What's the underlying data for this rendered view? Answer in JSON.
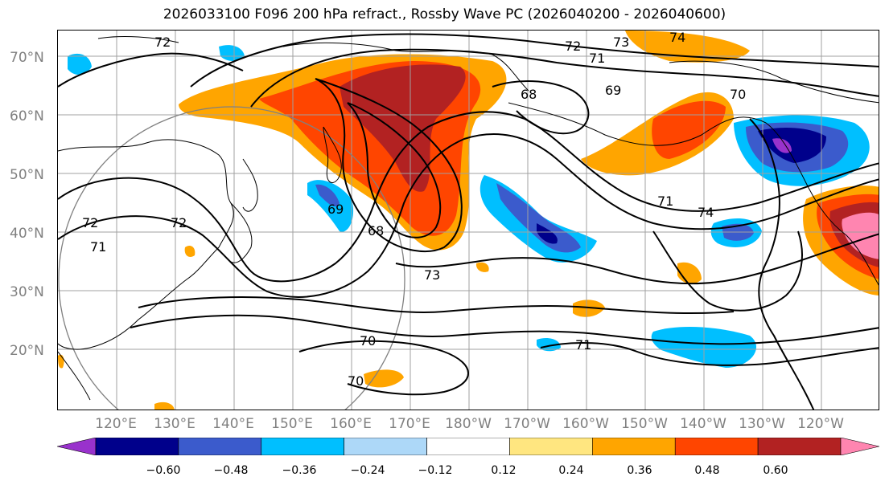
{
  "title": "2026033100 F096 200 hPa refract., Rossby Wave PC (2026040200 - 2026040600)",
  "lat_labels": [
    "70°N",
    "60°N",
    "50°N",
    "40°N",
    "30°N",
    "20°N"
  ],
  "lon_labels": [
    "120°E",
    "130°E",
    "140°E",
    "150°E",
    "160°E",
    "170°E",
    "180°W",
    "170°W",
    "160°W",
    "150°W",
    "140°W",
    "130°W",
    "120°W"
  ],
  "contour_labels": [
    "72",
    "72",
    "73",
    "74",
    "71",
    "68",
    "69",
    "70",
    "69",
    "68",
    "71",
    "74",
    "73",
    "70",
    "70",
    "71",
    "72",
    "71",
    "72"
  ],
  "colorbar": {
    "ticks": [
      "−0.60",
      "−0.48",
      "−0.36",
      "−0.24",
      "−0.12",
      "0.12",
      "0.24",
      "0.36",
      "0.48",
      "0.60"
    ],
    "colors": [
      "#9932cc",
      "#00008b",
      "#3b5bcc",
      "#00bfff",
      "#add8f8",
      "#ffffff",
      "#ffe680",
      "#ffa500",
      "#ff4500",
      "#b22222",
      "#ff85b0"
    ]
  },
  "shading_colors": {
    "orange": "#ffa500",
    "red_orange": "#ff4500",
    "dark_red": "#b22222",
    "pink": "#ff85b0",
    "yellow": "#ffe680",
    "blue": "#00bfff",
    "mid_blue": "#3b5bcc",
    "navy": "#00008b",
    "purple": "#9932cc"
  }
}
